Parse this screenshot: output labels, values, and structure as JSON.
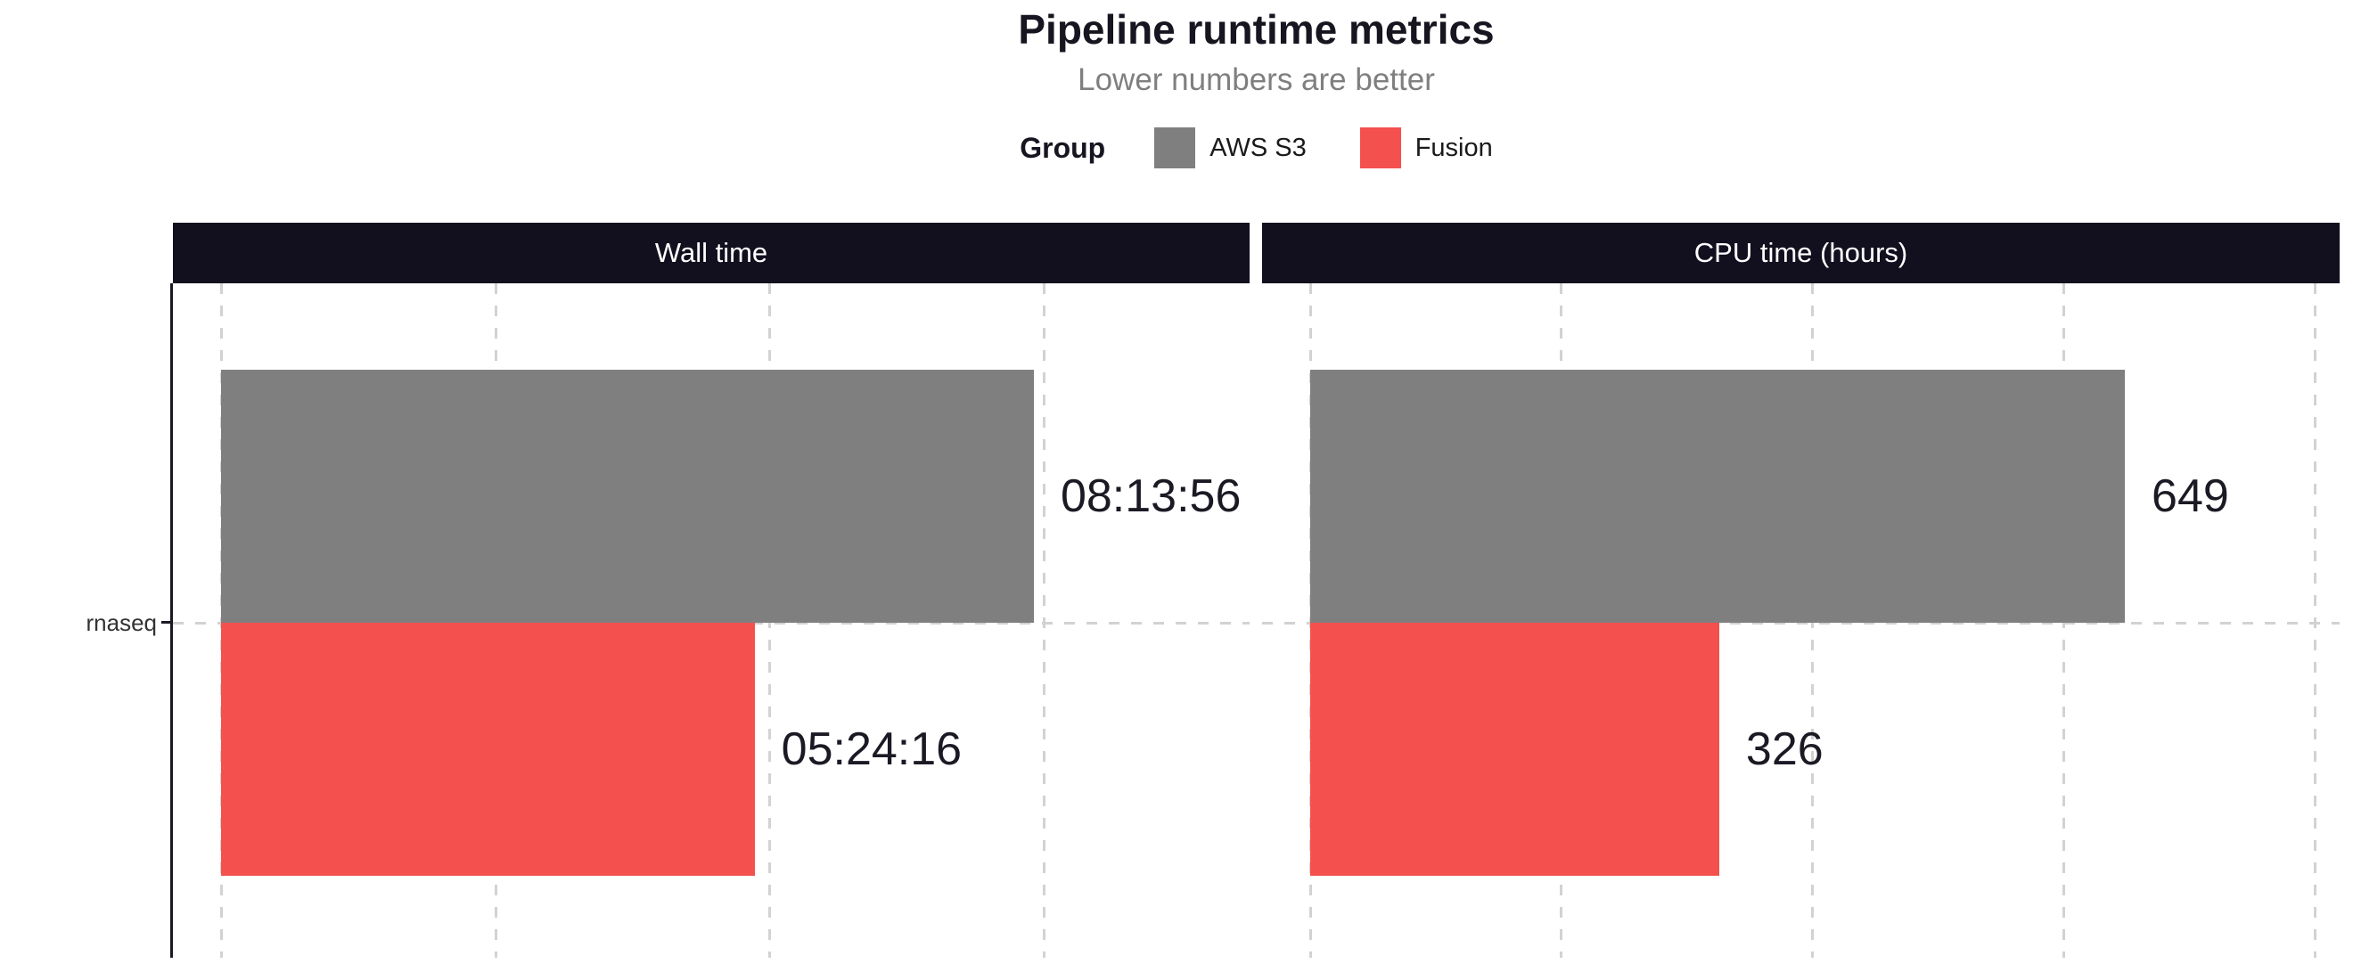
{
  "chart_data": {
    "type": "bar",
    "orientation": "horizontal",
    "title": "Pipeline runtime metrics",
    "subtitle": "Lower numbers are better",
    "categories": [
      "rnaseq"
    ],
    "legend": {
      "title": "Group",
      "position": "top",
      "entries": [
        "AWS S3",
        "Fusion"
      ]
    },
    "series_colors": {
      "AWS S3": "#7f7f7f",
      "Fusion": "#f4504e"
    },
    "grid": {
      "style": "dashed",
      "color": "#d2d2d2",
      "x_gridlines": true,
      "category_gridline": true
    },
    "facets": [
      {
        "label": "Wall time",
        "unit": "seconds (hh:mm:ss labels, axis tick labels hidden)",
        "xlim": [
          -1750,
          37500
        ],
        "gridlines": [
          0,
          10000,
          20000,
          30000
        ],
        "series": [
          {
            "name": "AWS S3",
            "category": "rnaseq",
            "value": 29636,
            "label": "08:13:56"
          },
          {
            "name": "Fusion",
            "category": "rnaseq",
            "value": 19456,
            "label": "05:24:16"
          }
        ]
      },
      {
        "label": "CPU time (hours)",
        "unit": "hours (axis tick labels hidden)",
        "xlim": [
          -38,
          820
        ],
        "gridlines": [
          0,
          200,
          400,
          600,
          800
        ],
        "series": [
          {
            "name": "AWS S3",
            "category": "rnaseq",
            "value": 649,
            "label": "649"
          },
          {
            "name": "Fusion",
            "category": "rnaseq",
            "value": 326,
            "label": "326"
          }
        ]
      }
    ],
    "colors": {
      "strip_background": "#120f1f",
      "strip_text": "#ffffff",
      "title": "#17151f",
      "subtitle": "#7f7f7f",
      "axis_line": "#1b1a24",
      "bar_label": "#1b1a24",
      "tick_label": "#333333",
      "gridline": "#d2d2d2",
      "background": "#ffffff"
    }
  }
}
